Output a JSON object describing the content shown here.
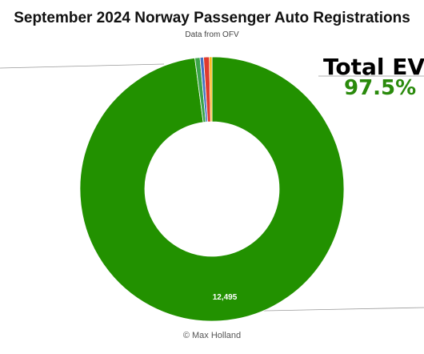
{
  "chart_data": {
    "type": "pie",
    "title": "September 2024 Norway Passenger Auto Registrations",
    "subtitle": "Data from OFV",
    "credit": "© Max Holland",
    "slices": [
      {
        "value": 12495,
        "color": "#229100",
        "label": "12,495"
      },
      {
        "value": 80,
        "color": "#3ca44a",
        "label": ""
      },
      {
        "value": 55,
        "color": "#4472c4",
        "label": ""
      },
      {
        "value": 90,
        "color": "#e03b2e",
        "label": ""
      },
      {
        "value": 40,
        "color": "#ffb000",
        "label": ""
      }
    ],
    "callout": {
      "label": "Total EVs",
      "value": "97.5%"
    }
  }
}
